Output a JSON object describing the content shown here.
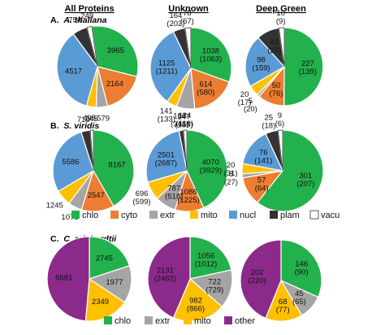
{
  "column_titles": [
    "All Proteins",
    "Unknown",
    "Deep Green"
  ],
  "sections": [
    {
      "letter": "A.",
      "organism": "A. thaliana"
    },
    {
      "letter": "B.",
      "organism": "S. viridis"
    },
    {
      "letter": "C.",
      "organism": "C. reinhardtii"
    }
  ],
  "colors": {
    "chlo": "#22b14c",
    "cyto": "#ed7d31",
    "extr": "#a5a5a5",
    "mito": "#ffc000",
    "nucl": "#5b9bd5",
    "plam": "#333333",
    "vacu": "#ffffff",
    "other": "#8b2a8b"
  },
  "legends": [
    {
      "items": [
        {
          "key": "chlo",
          "label": "chlo"
        },
        {
          "key": "cyto",
          "label": "cyto"
        },
        {
          "key": "extr",
          "label": "extr"
        },
        {
          "key": "mito",
          "label": "mito"
        },
        {
          "key": "nucl",
          "label": "nucl"
        },
        {
          "key": "plam",
          "label": "plam"
        },
        {
          "key": "vacu",
          "label": "vacu"
        }
      ]
    },
    {
      "items": [
        {
          "key": "chlo",
          "label": "chlo"
        },
        {
          "key": "extr",
          "label": "extr"
        },
        {
          "key": "mito",
          "label": "mito"
        },
        {
          "key": "other",
          "label": "other"
        }
      ]
    }
  ],
  "chart_data": [
    {
      "type": "pie",
      "organism": "A. thaliana",
      "column": "All Proteins",
      "slices": [
        {
          "category": "chlo",
          "value": 3965
        },
        {
          "category": "cyto",
          "value": 2164
        },
        {
          "category": "extr",
          "value": 579
        },
        {
          "category": "mito",
          "value": 496
        },
        {
          "category": "nucl",
          "value": 4517
        },
        {
          "category": "plam",
          "value": 754
        },
        {
          "category": "vacu",
          "value": 249
        }
      ]
    },
    {
      "type": "pie",
      "organism": "A. thaliana",
      "column": "Unknown",
      "slices": [
        {
          "category": "chlo",
          "value": 1038,
          "expected": 1063
        },
        {
          "category": "cyto",
          "value": 614,
          "expected": 580
        },
        {
          "category": "extr",
          "value": 247,
          "expected": 155
        },
        {
          "category": "mito",
          "value": 141,
          "expected": 133
        },
        {
          "category": "nucl",
          "value": 1125,
          "expected": 1211
        },
        {
          "category": "plam",
          "value": 164,
          "expected": 202
        },
        {
          "category": "vacu",
          "value": 78,
          "expected": 67
        }
      ]
    },
    {
      "type": "pie",
      "organism": "A. thaliana",
      "column": "Deep Green",
      "slices": [
        {
          "category": "chlo",
          "value": 227,
          "expected": 139
        },
        {
          "category": "cyto",
          "value": 50,
          "expected": 76
        },
        {
          "category": "extr",
          "value": 5,
          "expected": 20
        },
        {
          "category": "mito",
          "value": 20,
          "expected": 17
        },
        {
          "category": "nucl",
          "value": 98,
          "expected": 159
        },
        {
          "category": "plam",
          "value": 43,
          "expected": 27
        },
        {
          "category": "vacu",
          "value": 10,
          "expected": 9
        }
      ]
    },
    {
      "type": "pie",
      "organism": "S. viridis",
      "column": "All Proteins",
      "slices": [
        {
          "category": "chlo",
          "value": 8167
        },
        {
          "category": "cyto",
          "value": 2547
        },
        {
          "category": "extr",
          "value": 1076
        },
        {
          "category": "mito",
          "value": 1245
        },
        {
          "category": "nucl",
          "value": 5586
        },
        {
          "category": "plam",
          "value": 710
        },
        {
          "category": "vacu",
          "value": 245
        }
      ]
    },
    {
      "type": "pie",
      "organism": "S. viridis",
      "column": "Unknown",
      "slices": [
        {
          "category": "chlo",
          "value": 4070,
          "expected": 3929
        },
        {
          "category": "cyto",
          "value": 1086,
          "expected": 1225
        },
        {
          "category": "extr",
          "value": 787,
          "expected": 518
        },
        {
          "category": "mito",
          "value": 696,
          "expected": 599
        },
        {
          "category": "nucl",
          "value": 2501,
          "expected": 2687
        },
        {
          "category": "plam",
          "value": 166,
          "expected": 346
        },
        {
          "category": "vacu",
          "value": 124,
          "expected": 118
        }
      ]
    },
    {
      "type": "pie",
      "organism": "S. viridis",
      "column": "Deep Green",
      "slices": [
        {
          "category": "chlo",
          "value": 301,
          "expected": 207
        },
        {
          "category": "cyto",
          "value": 57,
          "expected": 64
        },
        {
          "category": "extr",
          "value": 8,
          "expected": 27
        },
        {
          "category": "mito",
          "value": 20,
          "expected": 31
        },
        {
          "category": "nucl",
          "value": 76,
          "expected": 141
        },
        {
          "category": "plam",
          "value": 25,
          "expected": 18
        },
        {
          "category": "vacu",
          "value": 9,
          "expected": 6
        }
      ]
    },
    {
      "type": "pie",
      "organism": "C. reinhardtii",
      "column": "All Proteins",
      "slices": [
        {
          "category": "chlo",
          "value": 2745
        },
        {
          "category": "extr",
          "value": 1977
        },
        {
          "category": "mito",
          "value": 2349
        },
        {
          "category": "other",
          "value": 6681
        }
      ]
    },
    {
      "type": "pie",
      "organism": "C. reinhardtii",
      "column": "Unknown",
      "slices": [
        {
          "category": "chlo",
          "value": 1056,
          "expected": 1012
        },
        {
          "category": "extr",
          "value": 722,
          "expected": 729
        },
        {
          "category": "mito",
          "value": 982,
          "expected": 866
        },
        {
          "category": "other",
          "value": 2131,
          "expected": 2462
        }
      ]
    },
    {
      "type": "pie",
      "organism": "C. reinhardtii",
      "column": "Deep Green",
      "slices": [
        {
          "category": "chlo",
          "value": 146,
          "expected": 90
        },
        {
          "category": "extr",
          "value": 45,
          "expected": 65
        },
        {
          "category": "mito",
          "value": 68,
          "expected": 77
        },
        {
          "category": "other",
          "value": 202,
          "expected": 220
        }
      ]
    }
  ]
}
